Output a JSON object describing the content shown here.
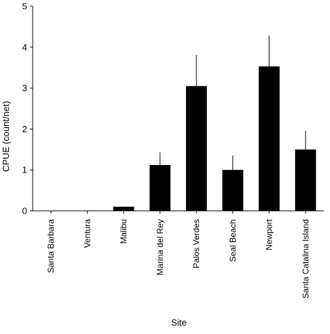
{
  "chart_data": {
    "type": "bar",
    "categories": [
      "Santa Barbara",
      "Ventura",
      "Malibu",
      "Marina del Rey",
      "Palos Verdes",
      "Seal Beach",
      "Newport",
      "Santa Catalina Island"
    ],
    "values": [
      0,
      0,
      0.1,
      1.12,
      3.05,
      1.0,
      3.53,
      1.5
    ],
    "error_upper": [
      0,
      0,
      0,
      1.43,
      3.81,
      1.35,
      4.28,
      1.96
    ],
    "xlabel": "Site",
    "ylabel": "CPUE (count/net)",
    "ylim": [
      0,
      5
    ],
    "yticks": [
      "0",
      "1",
      "2",
      "3",
      "4",
      "5"
    ],
    "grid": false,
    "bar_color": "#000000"
  }
}
